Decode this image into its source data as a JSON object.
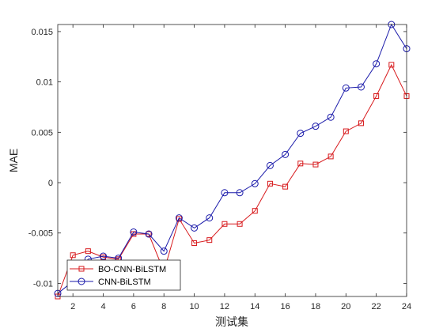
{
  "chart_data": {
    "type": "line",
    "title": "",
    "xlabel": "测试集",
    "ylabel": "MAE",
    "xlim": [
      1,
      24
    ],
    "ylim": [
      -0.0113,
      0.0157
    ],
    "x_ticks": [
      2,
      4,
      6,
      8,
      10,
      12,
      14,
      16,
      18,
      20,
      22,
      24
    ],
    "y_ticks": [
      -0.01,
      -0.005,
      0,
      0.005,
      0.01,
      0.015
    ],
    "y_tick_labels": [
      "-0.01",
      "-0.005",
      "0",
      "0.005",
      "0.01",
      "0.015"
    ],
    "grid": false,
    "legend_position": "bottom-left",
    "x": [
      1,
      2,
      3,
      4,
      5,
      6,
      7,
      8,
      9,
      10,
      11,
      12,
      13,
      14,
      15,
      16,
      17,
      18,
      19,
      20,
      21,
      22,
      23,
      24
    ],
    "series": [
      {
        "name": "BO-CNN-BiLSTM",
        "color": "#d7191c",
        "marker": "square",
        "values": [
          -0.0113,
          -0.0072,
          -0.0068,
          -0.0074,
          -0.0076,
          -0.0051,
          -0.0051,
          -0.0088,
          -0.0036,
          -0.006,
          -0.0057,
          -0.0041,
          -0.0041,
          -0.0028,
          -0.0001,
          -0.0004,
          0.0019,
          0.0018,
          0.0026,
          0.0051,
          0.0059,
          0.0086,
          0.0117,
          0.0086
        ]
      },
      {
        "name": "CNN-BiLSTM",
        "color": "#1a1aaa",
        "marker": "circle",
        "values": [
          -0.011,
          -0.0098,
          -0.0076,
          -0.0073,
          -0.0075,
          -0.0049,
          -0.0051,
          -0.0068,
          -0.0035,
          -0.0045,
          -0.0035,
          -0.001,
          -0.001,
          -0.0001,
          0.0017,
          0.0028,
          0.0049,
          0.0056,
          0.0065,
          0.0094,
          0.0095,
          0.0118,
          0.0157,
          0.0133
        ]
      }
    ]
  }
}
